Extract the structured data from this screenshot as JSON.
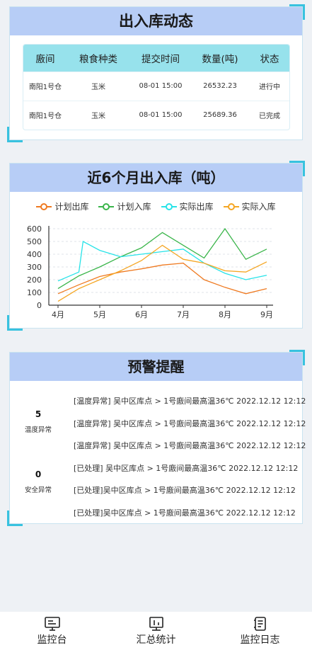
{
  "flow_panel": {
    "title": "出入库动态",
    "columns": [
      "廒间",
      "粮食种类",
      "提交时间",
      "数量(吨)",
      "状态"
    ],
    "rows": [
      [
        "南阳1号仓",
        "玉米",
        "08-01 15:00",
        "26532.23",
        "进行中"
      ],
      [
        "南阳1号仓",
        "玉米",
        "08-01 15:00",
        "25689.36",
        "已完成"
      ]
    ]
  },
  "chart_panel": {
    "title": "近6个月出入库（吨）"
  },
  "chart_data": {
    "type": "line",
    "categories": [
      "4月",
      "5月",
      "6月",
      "7月",
      "8月",
      "9月"
    ],
    "ylim": [
      0,
      600
    ],
    "yticks": [
      0,
      100,
      200,
      300,
      400,
      500,
      600
    ],
    "grid": true,
    "legend_position": "top",
    "series": [
      {
        "name": "计划出库",
        "color": "#ef7a21",
        "x": [
          0,
          0.5,
          1,
          1.5,
          2,
          2.5,
          3,
          3.5,
          4,
          4.5,
          5
        ],
        "values": [
          90,
          160,
          225,
          260,
          285,
          315,
          330,
          200,
          140,
          90,
          130
        ]
      },
      {
        "name": "计划入库",
        "color": "#3ab54a",
        "x": [
          0,
          0.5,
          1,
          1.5,
          2,
          2.5,
          3,
          3.5,
          4,
          4.5,
          5
        ],
        "values": [
          130,
          230,
          300,
          380,
          450,
          570,
          470,
          370,
          600,
          360,
          440
        ]
      },
      {
        "name": "实际出库",
        "color": "#27e3e8",
        "x": [
          0,
          0.5,
          0.6,
          1,
          1.5,
          2,
          2.5,
          3,
          3.5,
          4,
          4.5,
          5
        ],
        "values": [
          190,
          260,
          500,
          430,
          380,
          400,
          420,
          440,
          330,
          250,
          200,
          235
        ]
      },
      {
        "name": "实际入库",
        "color": "#f5a623",
        "x": [
          0,
          0.5,
          1,
          1.5,
          2,
          2.5,
          3,
          3.5,
          4,
          4.5,
          5
        ],
        "values": [
          30,
          130,
          200,
          270,
          350,
          470,
          360,
          330,
          270,
          260,
          340
        ]
      }
    ]
  },
  "alert_panel": {
    "title": "预警提醒",
    "stats": [
      {
        "value": "5",
        "label": "温度异常"
      },
      {
        "value": "0",
        "label": "安全异常"
      }
    ],
    "alerts": [
      "[温度异常] 吴中区库点 > 1号廒间最高温36℃ 2022.12.12 12:12",
      "[温度异常] 吴中区库点 > 1号廒间最高温36℃ 2022.12.12 12:12",
      "[温度异常] 吴中区库点 > 1号廒间最高温36℃ 2022.12.12 12:12",
      "[已处理] 吴中区库点 > 1号廒间最高温36℃ 2022.12.12 12:12",
      "[已处理]吴中区库点 > 1号廒间最高温36℃ 2022.12.12 12:12",
      "[已处理]吴中区库点 > 1号廒间最高温36℃ 2022.12.12 12:12"
    ]
  },
  "nav": {
    "items": [
      {
        "label": "监控台",
        "icon": "monitor-console-icon"
      },
      {
        "label": "汇总统计",
        "icon": "statistics-board-icon"
      },
      {
        "label": "监控日志",
        "icon": "log-list-icon"
      }
    ]
  },
  "colors": {
    "header_bg": "#b7cdf6",
    "table_header_bg": "#97e2ec",
    "corner_accent": "#38c2df"
  }
}
